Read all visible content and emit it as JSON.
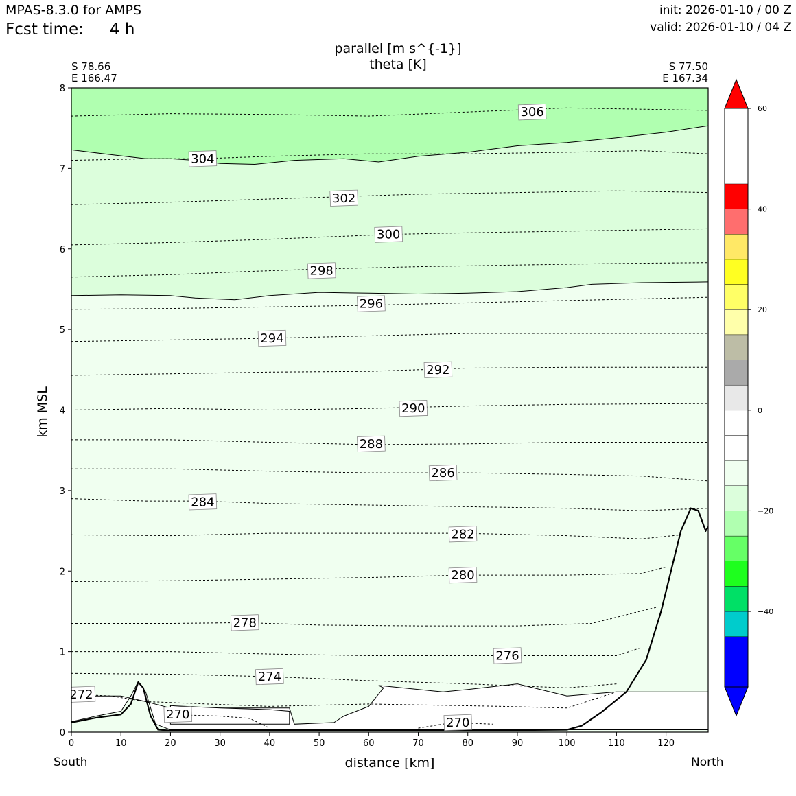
{
  "header": {
    "model": "MPAS-8.3.0 for AMPS",
    "fcst_label": "Fcst time:",
    "fcst_value": "4 h",
    "init": "init: 2026-01-10 / 00 Z",
    "valid": "valid: 2026-01-10 / 04 Z"
  },
  "chart_data": {
    "type": "cross-section",
    "title": [
      "parallel [m s^{-1}]",
      "theta [K]"
    ],
    "xlabel": "distance [km]",
    "ylabel": "km MSL",
    "xlim": [
      0,
      128.5
    ],
    "ylim": [
      0,
      8
    ],
    "x_ticks": [
      0,
      10,
      20,
      30,
      40,
      50,
      60,
      70,
      80,
      90,
      100,
      110,
      120
    ],
    "y_ticks": [
      0,
      1,
      2,
      3,
      4,
      5,
      6,
      7,
      8
    ],
    "endpoints": {
      "left": {
        "lat": "S 78.66",
        "lon": "E 166.47",
        "dir": "South"
      },
      "right": {
        "lat": "S 77.50",
        "lon": "E 167.34",
        "dir": "North"
      }
    },
    "colorbar": {
      "levels": [
        -55,
        -50,
        -45,
        -40,
        -35,
        -30,
        -25,
        -20,
        -15,
        -10,
        -5,
        0,
        5,
        10,
        15,
        20,
        25,
        30,
        35,
        40,
        45,
        50,
        55,
        60
      ],
      "colors": [
        "#0000ff",
        "#0000ff",
        "#00cccc",
        "#00e066",
        "#1eff1e",
        "#66ff66",
        "#b0ffb0",
        "#dcfedc",
        "#f0fff0",
        "#ffffff",
        "#ffffff",
        "#e8e8e8",
        "#aaaaaa",
        "#bdbda6",
        "#ffffaa",
        "#ffff66",
        "#ffff22",
        "#ffe866",
        "#ff6e6e",
        "#ff0000"
      ],
      "extend_low": "#0000ff",
      "extend_high": "#ff0000",
      "tick_values": [
        -40,
        -20,
        0,
        20,
        40,
        60
      ],
      "tick_labels": [
        "−40",
        "−20",
        "0",
        "20",
        "40",
        "60"
      ]
    },
    "wind_fill": [
      {
        "range": "-15 to -10",
        "color": "#b0ffb0",
        "region": "top",
        "boundary": [
          [
            0,
            7.23
          ],
          [
            8,
            7.17
          ],
          [
            15,
            7.12
          ],
          [
            20,
            7.12
          ],
          [
            25,
            7.1
          ],
          [
            30,
            7.06
          ],
          [
            37,
            7.05
          ],
          [
            45,
            7.1
          ],
          [
            55,
            7.12
          ],
          [
            62,
            7.08
          ],
          [
            70,
            7.15
          ],
          [
            80,
            7.2
          ],
          [
            90,
            7.28
          ],
          [
            100,
            7.32
          ],
          [
            110,
            7.38
          ],
          [
            120,
            7.45
          ],
          [
            128.5,
            7.53
          ]
        ]
      },
      {
        "range": "-10 to -5",
        "color": "#dcfedc",
        "region": "upper",
        "boundary": [
          [
            0,
            5.42
          ],
          [
            10,
            5.43
          ],
          [
            20,
            5.42
          ],
          [
            25,
            5.39
          ],
          [
            33,
            5.37
          ],
          [
            40,
            5.42
          ],
          [
            50,
            5.46
          ],
          [
            60,
            5.45
          ],
          [
            70,
            5.44
          ],
          [
            80,
            5.45
          ],
          [
            90,
            5.47
          ],
          [
            100,
            5.52
          ],
          [
            105,
            5.56
          ],
          [
            115,
            5.58
          ],
          [
            128.5,
            5.59
          ]
        ]
      },
      {
        "range": "-5 to 0",
        "color": "#f0fff0",
        "region": "lower"
      }
    ],
    "wind_zero_regions": [
      {
        "points": [
          [
            0,
            0.13
          ],
          [
            5,
            0.2
          ],
          [
            10,
            0.26
          ],
          [
            12,
            0.45
          ],
          [
            13.5,
            0.63
          ],
          [
            15,
            0.5
          ],
          [
            17,
            0.1
          ],
          [
            20,
            0.03
          ],
          [
            128.5,
            0.03
          ],
          [
            128.5,
            0.5
          ],
          [
            120,
            0.5
          ],
          [
            110,
            0.5
          ],
          [
            100,
            0.45
          ],
          [
            90,
            0.6
          ],
          [
            80,
            0.53
          ],
          [
            75,
            0.5
          ],
          [
            62,
            0.58
          ],
          [
            63,
            0.55
          ],
          [
            60,
            0.32
          ],
          [
            55,
            0.2
          ],
          [
            53,
            0.12
          ],
          [
            45,
            0.1
          ],
          [
            44,
            0.3
          ],
          [
            20,
            0.3
          ],
          [
            15,
            0.38
          ],
          [
            10,
            0.45
          ],
          [
            0,
            0.45
          ]
        ]
      },
      {
        "points": [
          [
            20,
            0.33
          ],
          [
            30,
            0.3
          ],
          [
            40,
            0.28
          ],
          [
            44,
            0.26
          ],
          [
            44,
            0.1
          ],
          [
            20,
            0.1
          ]
        ]
      }
    ],
    "theta_contours": [
      {
        "value": 306,
        "points": [
          [
            0,
            7.65
          ],
          [
            20,
            7.68
          ],
          [
            40,
            7.67
          ],
          [
            60,
            7.65
          ],
          [
            80,
            7.7
          ],
          [
            100,
            7.75
          ],
          [
            128.5,
            7.72
          ]
        ],
        "label_x": 93,
        "label_y": 7.7
      },
      {
        "value": 304,
        "points": [
          [
            0,
            7.1
          ],
          [
            15,
            7.12
          ],
          [
            26,
            7.12
          ],
          [
            40,
            7.15
          ],
          [
            60,
            7.18
          ],
          [
            80,
            7.18
          ],
          [
            100,
            7.2
          ],
          [
            115,
            7.22
          ],
          [
            128.5,
            7.18
          ]
        ],
        "label_x": 26.5,
        "label_y": 7.12
      },
      {
        "value": 302,
        "points": [
          [
            0,
            6.55
          ],
          [
            20,
            6.58
          ],
          [
            40,
            6.62
          ],
          [
            55,
            6.65
          ],
          [
            70,
            6.68
          ],
          [
            90,
            6.7
          ],
          [
            110,
            6.72
          ],
          [
            128.5,
            6.7
          ]
        ],
        "label_x": 55,
        "label_y": 6.63
      },
      {
        "value": 300,
        "points": [
          [
            0,
            6.05
          ],
          [
            20,
            6.08
          ],
          [
            40,
            6.12
          ],
          [
            64,
            6.18
          ],
          [
            80,
            6.2
          ],
          [
            100,
            6.22
          ],
          [
            128.5,
            6.25
          ]
        ],
        "label_x": 64,
        "label_y": 6.18
      },
      {
        "value": 298,
        "points": [
          [
            0,
            5.65
          ],
          [
            20,
            5.68
          ],
          [
            36,
            5.72
          ],
          [
            50,
            5.75
          ],
          [
            70,
            5.78
          ],
          [
            90,
            5.8
          ],
          [
            110,
            5.82
          ],
          [
            128.5,
            5.83
          ]
        ],
        "label_x": 50.5,
        "label_y": 5.73
      },
      {
        "value": 296,
        "points": [
          [
            0,
            5.25
          ],
          [
            20,
            5.26
          ],
          [
            40,
            5.28
          ],
          [
            60,
            5.3
          ],
          [
            80,
            5.33
          ],
          [
            100,
            5.36
          ],
          [
            128.5,
            5.4
          ]
        ],
        "label_x": 60.5,
        "label_y": 5.32
      },
      {
        "value": 294,
        "points": [
          [
            0,
            4.85
          ],
          [
            20,
            4.87
          ],
          [
            40,
            4.89
          ],
          [
            60,
            4.92
          ],
          [
            80,
            4.95
          ],
          [
            100,
            4.95
          ],
          [
            128.5,
            4.95
          ]
        ],
        "label_x": 40.5,
        "label_y": 4.89
      },
      {
        "value": 292,
        "points": [
          [
            0,
            4.43
          ],
          [
            20,
            4.45
          ],
          [
            40,
            4.47
          ],
          [
            60,
            4.48
          ],
          [
            80,
            4.52
          ],
          [
            100,
            4.53
          ],
          [
            128.5,
            4.53
          ]
        ],
        "label_x": 74,
        "label_y": 4.5
      },
      {
        "value": 290,
        "points": [
          [
            0,
            4.0
          ],
          [
            20,
            4.02
          ],
          [
            40,
            4.0
          ],
          [
            60,
            4.02
          ],
          [
            80,
            4.05
          ],
          [
            100,
            4.07
          ],
          [
            128.5,
            4.08
          ]
        ],
        "label_x": 69,
        "label_y": 4.02
      },
      {
        "value": 288,
        "points": [
          [
            0,
            3.63
          ],
          [
            20,
            3.63
          ],
          [
            40,
            3.6
          ],
          [
            60,
            3.57
          ],
          [
            80,
            3.58
          ],
          [
            100,
            3.6
          ],
          [
            128.5,
            3.6
          ]
        ],
        "label_x": 60.5,
        "label_y": 3.58
      },
      {
        "value": 286,
        "points": [
          [
            0,
            3.27
          ],
          [
            20,
            3.27
          ],
          [
            40,
            3.24
          ],
          [
            60,
            3.22
          ],
          [
            80,
            3.22
          ],
          [
            100,
            3.2
          ],
          [
            115,
            3.18
          ],
          [
            128.5,
            3.12
          ]
        ],
        "label_x": 75,
        "label_y": 3.22
      },
      {
        "value": 284,
        "points": [
          [
            0,
            2.9
          ],
          [
            15,
            2.87
          ],
          [
            26,
            2.87
          ],
          [
            40,
            2.84
          ],
          [
            60,
            2.82
          ],
          [
            80,
            2.8
          ],
          [
            100,
            2.78
          ],
          [
            115,
            2.75
          ],
          [
            128.5,
            2.78
          ]
        ],
        "label_x": 26.5,
        "label_y": 2.86
      },
      {
        "value": 282,
        "points": [
          [
            0,
            2.45
          ],
          [
            20,
            2.44
          ],
          [
            40,
            2.47
          ],
          [
            60,
            2.47
          ],
          [
            79,
            2.47
          ],
          [
            100,
            2.44
          ],
          [
            115,
            2.4
          ],
          [
            123,
            2.45
          ]
        ],
        "label_x": 79,
        "label_y": 2.46
      },
      {
        "value": 280,
        "points": [
          [
            0,
            1.87
          ],
          [
            20,
            1.88
          ],
          [
            40,
            1.9
          ],
          [
            60,
            1.92
          ],
          [
            79,
            1.95
          ],
          [
            100,
            1.95
          ],
          [
            115,
            1.97
          ],
          [
            120,
            2.05
          ]
        ],
        "label_x": 79,
        "label_y": 1.95
      },
      {
        "value": 278,
        "points": [
          [
            0,
            1.35
          ],
          [
            20,
            1.35
          ],
          [
            35,
            1.36
          ],
          [
            50,
            1.33
          ],
          [
            70,
            1.32
          ],
          [
            90,
            1.32
          ],
          [
            105,
            1.35
          ],
          [
            118,
            1.55
          ]
        ],
        "label_x": 35,
        "label_y": 1.36
      },
      {
        "value": 276,
        "points": [
          [
            0,
            1.0
          ],
          [
            20,
            1.0
          ],
          [
            40,
            0.97
          ],
          [
            60,
            0.95
          ],
          [
            88,
            0.95
          ],
          [
            100,
            0.95
          ],
          [
            110,
            0.95
          ],
          [
            115,
            1.05
          ]
        ],
        "label_x": 88,
        "label_y": 0.95
      },
      {
        "value": 274,
        "points": [
          [
            0,
            0.73
          ],
          [
            20,
            0.72
          ],
          [
            40,
            0.69
          ],
          [
            60,
            0.64
          ],
          [
            80,
            0.6
          ],
          [
            100,
            0.55
          ],
          [
            110,
            0.6
          ]
        ],
        "label_x": 40,
        "label_y": 0.69
      },
      {
        "value": 272,
        "points": [
          [
            0,
            0.47
          ],
          [
            8,
            0.45
          ],
          [
            15,
            0.38
          ],
          [
            40,
            0.32
          ],
          [
            60,
            0.35
          ],
          [
            87,
            0.32
          ],
          [
            100,
            0.3
          ],
          [
            110,
            0.5
          ]
        ],
        "label_x": 2,
        "label_y": 0.47
      },
      {
        "value": 270,
        "points": [
          [
            19,
            0.22
          ],
          [
            30,
            0.2
          ],
          [
            36,
            0.17
          ],
          [
            40,
            0.05
          ]
        ],
        "label_x": 21.5,
        "label_y": 0.22
      },
      {
        "value": 270,
        "points": [
          [
            70,
            0.05
          ],
          [
            77,
            0.12
          ],
          [
            85,
            0.1
          ]
        ],
        "label_x": 78,
        "label_y": 0.12
      }
    ],
    "terrain": [
      [
        0,
        0.12
      ],
      [
        5,
        0.18
      ],
      [
        10,
        0.22
      ],
      [
        12,
        0.35
      ],
      [
        13.5,
        0.62
      ],
      [
        14.5,
        0.55
      ],
      [
        16,
        0.2
      ],
      [
        17.5,
        0.03
      ],
      [
        20,
        0.02
      ],
      [
        40,
        0.02
      ],
      [
        50,
        0.02
      ],
      [
        60,
        0.02
      ],
      [
        80,
        0.02
      ],
      [
        100,
        0.03
      ],
      [
        103,
        0.08
      ],
      [
        107,
        0.25
      ],
      [
        112,
        0.5
      ],
      [
        116,
        0.9
      ],
      [
        119,
        1.5
      ],
      [
        121,
        2.0
      ],
      [
        123,
        2.5
      ],
      [
        125,
        2.78
      ],
      [
        126.5,
        2.75
      ],
      [
        128,
        2.5
      ],
      [
        128.5,
        2.55
      ]
    ]
  }
}
